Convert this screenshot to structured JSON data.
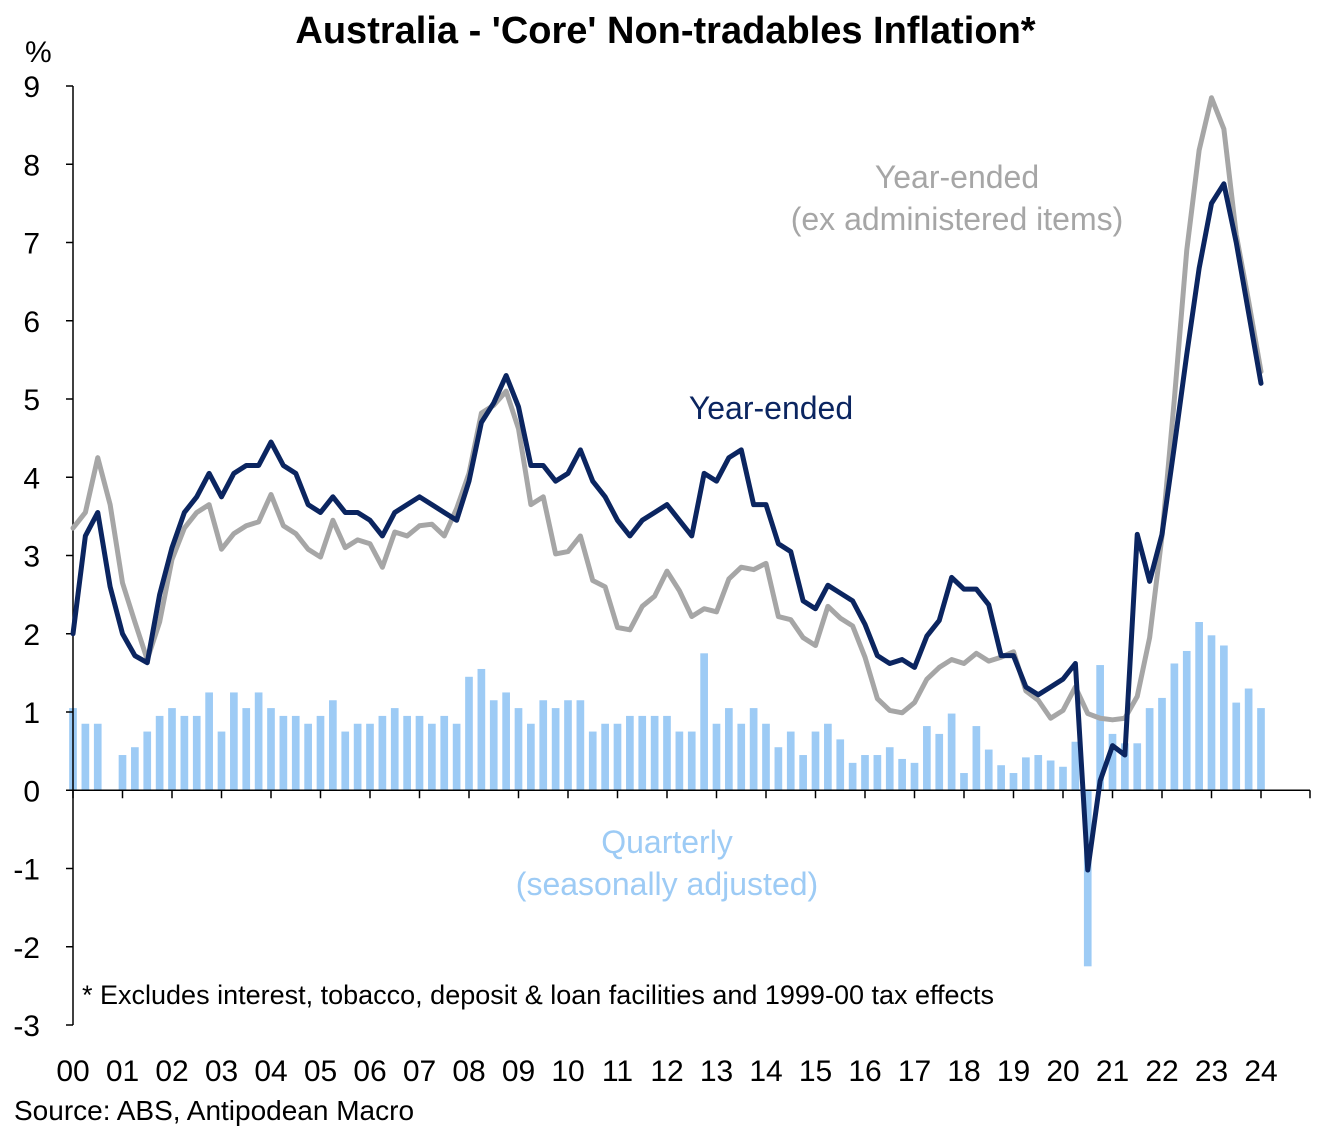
{
  "chart_data": {
    "type": "bar+line",
    "title": "Australia - 'Core' Non-tradables Inflation*",
    "ylabel": "%",
    "ylim": [
      -3,
      9
    ],
    "yticks": [
      "9",
      "8",
      "7",
      "6",
      "5",
      "4",
      "3",
      "2",
      "1",
      "0",
      "-1",
      "-2",
      "-3"
    ],
    "year_labels": [
      "00",
      "01",
      "02",
      "03",
      "04",
      "05",
      "06",
      "07",
      "08",
      "09",
      "10",
      "11",
      "12",
      "13",
      "14",
      "15",
      "16",
      "17",
      "18",
      "19",
      "20",
      "21",
      "22",
      "23",
      "24"
    ],
    "x_start": 2000.0,
    "x_step": 0.25,
    "footnote": "* Excludes  interest, tobacco, deposit & loan facilities and 1999-00 tax effects",
    "source": "Source: ABS, Antipodean  Macro",
    "colors": {
      "year_ended": "#0b2560",
      "year_ended_ex": "#a6a6a6",
      "quarterly": "#9dcbf5"
    },
    "series": [
      {
        "name": "Quarterly",
        "label_lines": [
          "Quarterly",
          "(seasonally adjusted)"
        ],
        "kind": "bar",
        "values": [
          1.05,
          0.85,
          0.85,
          0.0,
          0.45,
          0.55,
          0.75,
          0.95,
          1.05,
          0.95,
          0.95,
          1.25,
          0.75,
          1.25,
          1.05,
          1.25,
          1.05,
          0.95,
          0.95,
          0.85,
          0.95,
          1.15,
          0.75,
          0.85,
          0.85,
          0.95,
          1.05,
          0.95,
          0.95,
          0.85,
          0.95,
          0.85,
          1.45,
          1.55,
          1.15,
          1.25,
          1.05,
          0.85,
          1.15,
          1.05,
          1.15,
          1.15,
          0.75,
          0.85,
          0.85,
          0.95,
          0.95,
          0.95,
          0.95,
          0.75,
          0.75,
          1.75,
          0.85,
          1.05,
          0.85,
          1.05,
          0.85,
          0.55,
          0.75,
          0.45,
          0.75,
          0.85,
          0.65,
          0.35,
          0.45,
          0.45,
          0.55,
          0.4,
          0.35,
          0.82,
          0.72,
          0.98,
          0.22,
          0.82,
          0.52,
          0.32,
          0.22,
          0.42,
          0.45,
          0.38,
          0.3,
          0.62,
          -2.25,
          1.6,
          0.72,
          0.6,
          0.6,
          1.05,
          1.18,
          1.62,
          1.78,
          2.15,
          1.98,
          1.85,
          1.12,
          1.3,
          1.05
        ]
      },
      {
        "name": "Year-ended",
        "label_lines": [
          "Year-ended"
        ],
        "kind": "line",
        "values": [
          2.0,
          3.25,
          3.55,
          2.6,
          2.0,
          1.72,
          1.63,
          2.5,
          3.1,
          3.55,
          3.75,
          4.05,
          3.75,
          4.05,
          4.15,
          4.15,
          4.45,
          4.15,
          4.05,
          3.65,
          3.55,
          3.75,
          3.55,
          3.55,
          3.45,
          3.25,
          3.55,
          3.65,
          3.75,
          3.65,
          3.55,
          3.45,
          3.95,
          4.7,
          4.95,
          5.3,
          4.9,
          4.15,
          4.15,
          3.95,
          4.05,
          4.35,
          3.95,
          3.75,
          3.45,
          3.25,
          3.45,
          3.55,
          3.65,
          3.45,
          3.25,
          4.05,
          3.95,
          4.25,
          4.35,
          3.65,
          3.65,
          3.15,
          3.05,
          2.42,
          2.32,
          2.62,
          2.52,
          2.42,
          2.12,
          1.72,
          1.62,
          1.67,
          1.57,
          1.97,
          2.17,
          2.72,
          2.57,
          2.57,
          2.37,
          1.72,
          1.72,
          1.32,
          1.22,
          1.32,
          1.42,
          1.62,
          -1.02,
          0.12,
          0.57,
          0.45,
          3.27,
          2.67,
          3.27,
          4.4,
          5.57,
          6.67,
          7.5,
          7.75,
          7.0,
          6.1,
          5.2
        ]
      },
      {
        "name": "Year-ended (ex administered items)",
        "label_lines": [
          "Year-ended",
          "(ex administered items)"
        ],
        "kind": "line",
        "values": [
          3.35,
          3.55,
          4.25,
          3.65,
          2.65,
          2.15,
          1.67,
          2.15,
          2.95,
          3.35,
          3.55,
          3.65,
          3.08,
          3.28,
          3.38,
          3.43,
          3.78,
          3.38,
          3.28,
          3.08,
          2.98,
          3.45,
          3.1,
          3.2,
          3.15,
          2.85,
          3.3,
          3.25,
          3.38,
          3.4,
          3.25,
          3.6,
          4.05,
          4.82,
          4.92,
          5.1,
          4.62,
          3.65,
          3.75,
          3.02,
          3.05,
          3.25,
          2.68,
          2.6,
          2.08,
          2.05,
          2.35,
          2.48,
          2.8,
          2.55,
          2.22,
          2.32,
          2.28,
          2.7,
          2.85,
          2.82,
          2.9,
          2.22,
          2.18,
          1.95,
          1.85,
          2.35,
          2.2,
          2.1,
          1.7,
          1.17,
          1.02,
          0.99,
          1.12,
          1.42,
          1.57,
          1.67,
          1.62,
          1.75,
          1.65,
          1.7,
          1.77,
          1.27,
          1.15,
          0.92,
          1.02,
          1.32,
          0.98,
          0.92,
          0.9,
          0.92,
          1.2,
          1.95,
          3.25,
          5.0,
          6.9,
          8.18,
          8.85,
          8.45,
          7.1,
          6.25,
          5.35
        ]
      }
    ]
  }
}
